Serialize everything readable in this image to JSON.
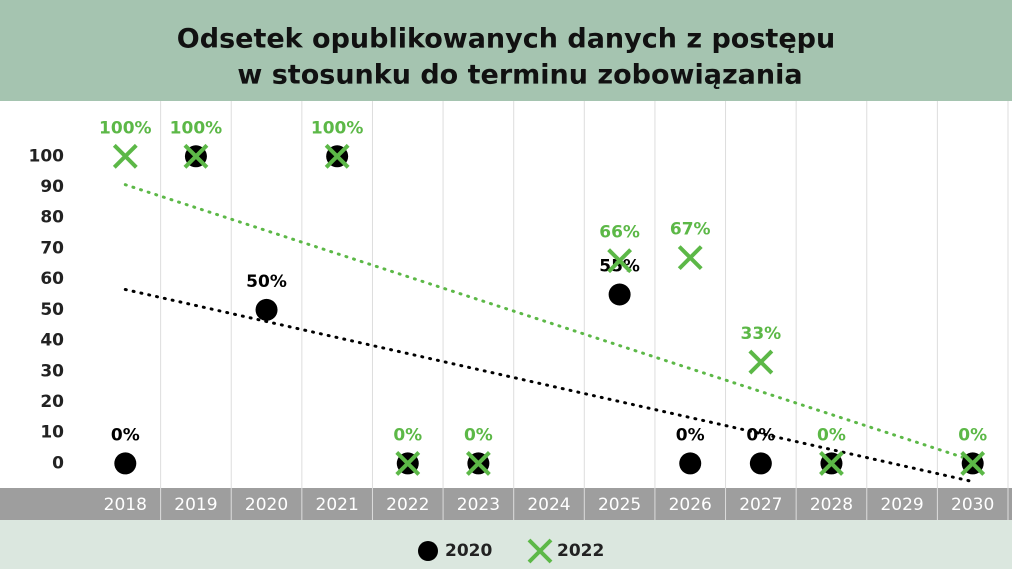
{
  "chart_data": {
    "type": "scatter",
    "title": [
      "Odsetek opublikowanych danych z postępu",
      "w stosunku do terminu zobowiązania"
    ],
    "categories": [
      "2018",
      "2019",
      "2020",
      "2021",
      "2022",
      "2023",
      "2024",
      "2025",
      "2026",
      "2027",
      "2028",
      "2029",
      "2030"
    ],
    "series": [
      {
        "name": "2020",
        "color": "#000000",
        "marker": "circle",
        "trendline": true,
        "values": [
          0,
          100,
          50,
          100,
          0,
          0,
          null,
          55,
          0,
          0,
          0,
          null,
          0
        ],
        "value_labels": [
          "0%",
          null,
          "50%",
          null,
          null,
          null,
          null,
          "55%",
          "0%",
          "0%",
          null,
          null,
          null
        ]
      },
      {
        "name": "2022",
        "color": "#5cb847",
        "marker": "x",
        "trendline": true,
        "values": [
          100,
          100,
          null,
          100,
          0,
          0,
          null,
          66,
          67,
          33,
          0,
          null,
          0
        ],
        "value_labels": [
          "100%",
          "100%",
          null,
          "100%",
          "0%",
          "0%",
          null,
          "66%",
          "67%",
          "33%",
          "0%",
          null,
          "0%"
        ]
      }
    ],
    "ylim": [
      -8,
      118
    ],
    "yticks": [
      0,
      10,
      20,
      30,
      40,
      50,
      60,
      70,
      80,
      90,
      100
    ],
    "grid": true
  }
}
